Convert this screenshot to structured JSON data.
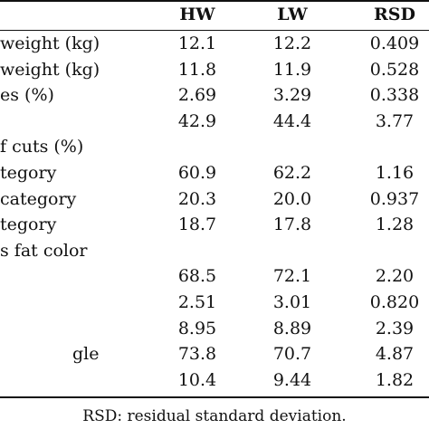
{
  "table": {
    "columns": [
      "HW",
      "LW",
      "RSD"
    ],
    "rows": [
      {
        "label": "weight (kg)",
        "values": [
          "12.1",
          "12.2",
          "0.409"
        ]
      },
      {
        "label": "weight (kg)",
        "values": [
          "11.8",
          "11.9",
          "0.528"
        ]
      },
      {
        "label": "es (%)",
        "values": [
          "2.69",
          "3.29",
          "0.338"
        ]
      },
      {
        "label": "",
        "values": [
          "42.9",
          "44.4",
          "3.77"
        ]
      },
      {
        "label": "f cuts (%)",
        "values": [
          "",
          "",
          ""
        ]
      },
      {
        "label": "tegory",
        "values": [
          "60.9",
          "62.2",
          "1.16"
        ]
      },
      {
        "label": "category",
        "values": [
          "20.3",
          "20.0",
          "0.937"
        ]
      },
      {
        "label": "tegory",
        "values": [
          "18.7",
          "17.8",
          "1.28"
        ]
      },
      {
        "label": "s fat color",
        "values": [
          "",
          "",
          ""
        ]
      },
      {
        "label": "",
        "values": [
          "68.5",
          "72.1",
          "2.20"
        ]
      },
      {
        "label": "",
        "values": [
          "2.51",
          "3.01",
          "0.820"
        ]
      },
      {
        "label": "",
        "values": [
          "8.95",
          "8.89",
          "2.39"
        ]
      },
      {
        "label": "gle",
        "values": [
          "73.8",
          "70.7",
          "4.87"
        ]
      },
      {
        "label": "",
        "values": [
          "10.4",
          "9.44",
          "1.82"
        ]
      }
    ],
    "footnote": "RSD: residual standard deviation."
  }
}
